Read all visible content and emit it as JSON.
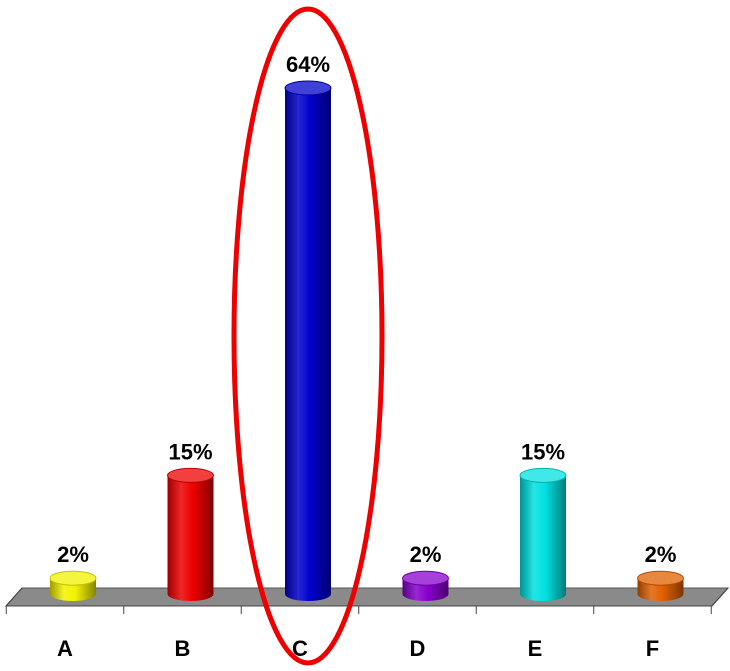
{
  "chart_data": {
    "type": "bar",
    "style": "3d-cylinder",
    "categories": [
      "A",
      "B",
      "C",
      "D",
      "E",
      "F"
    ],
    "values": [
      2,
      15,
      64,
      2,
      15,
      2
    ],
    "value_labels": [
      "2%",
      "15%",
      "64%",
      "2%",
      "15%",
      "2%"
    ],
    "colors": [
      "#f2f200",
      "#ee0000",
      "#0000cc",
      "#8800cc",
      "#00e0e0",
      "#e06000"
    ],
    "floor_color": "#8a8a8a",
    "title": "",
    "xlabel": "",
    "ylabel": "",
    "ylim": [
      0,
      64
    ],
    "grid": false,
    "legend": "none",
    "highlight": {
      "category": "C",
      "shape": "ellipse",
      "color": "#ee0000"
    }
  }
}
